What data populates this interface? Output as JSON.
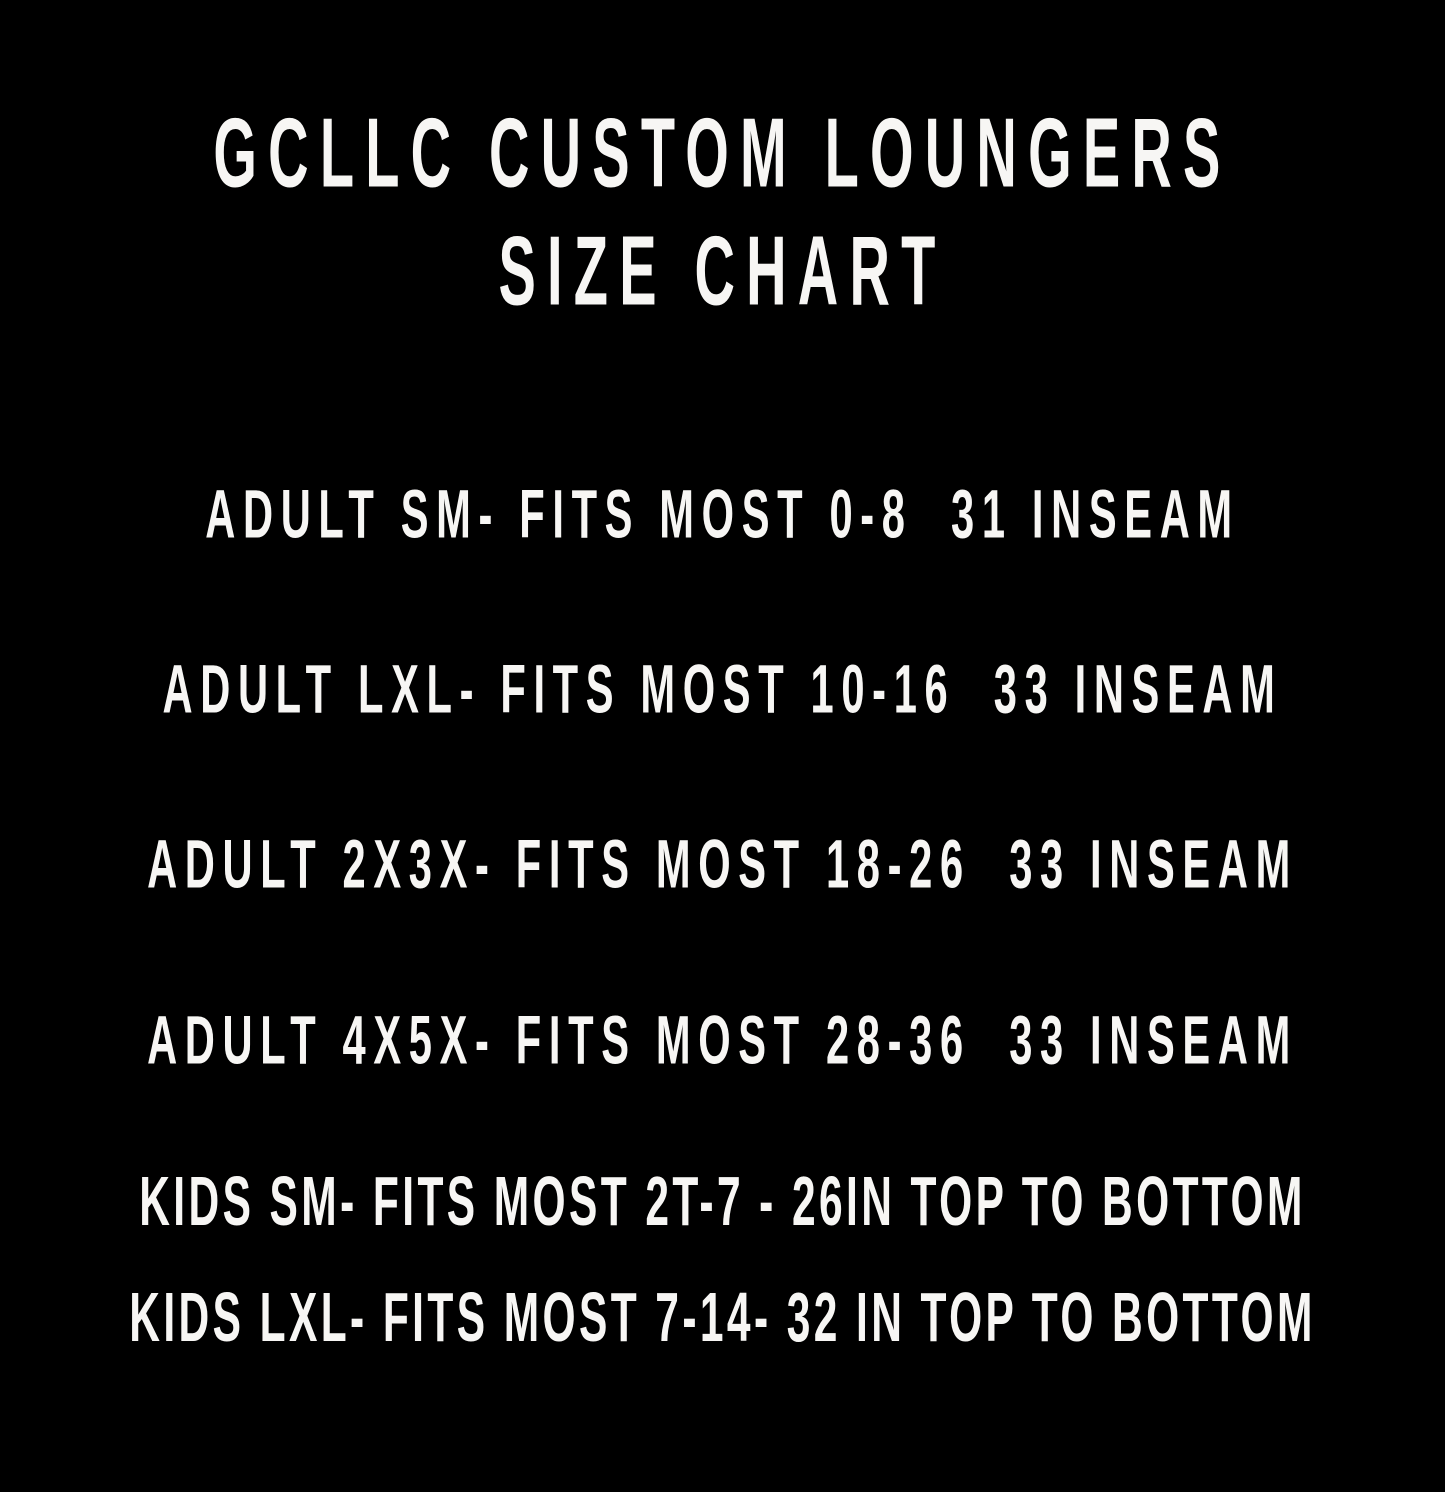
{
  "page": {
    "background_color": "#000000",
    "text_color": "#f7f6f4"
  },
  "title": {
    "line1": "GCLLC CUSTOM LOUNGERS",
    "line2": "SIZE CHART"
  },
  "rows": [
    {
      "size": "ADULT SM",
      "fits": "FITS MOST 0-8",
      "measurement": "31 INSEAM",
      "text": "ADULT SM- FITS MOST 0-8  31 INSEAM"
    },
    {
      "size": "ADULT LXL",
      "fits": "FITS MOST 10-16",
      "measurement": "33 INSEAM",
      "text": "ADULT LXL- FITS MOST 10-16  33 INSEAM"
    },
    {
      "size": "ADULT 2X3X",
      "fits": "FITS MOST 18-26",
      "measurement": "33 INSEAM",
      "text": "ADULT 2X3X- FITS MOST 18-26  33 INSEAM"
    },
    {
      "size": "ADULT 4X5X",
      "fits": "FITS MOST 28-36",
      "measurement": "33 INSEAM",
      "text": "ADULT 4X5X- FITS MOST 28-36  33 INSEAM"
    },
    {
      "size": "KIDS SM",
      "fits": "FITS MOST 2T-7",
      "measurement": "26IN TOP TO BOTTOM",
      "text": "KIDS SM- FITS MOST 2T-7 - 26IN TOP TO BOTTOM"
    },
    {
      "size": "KIDS LXL",
      "fits": "FITS MOST 7-14",
      "measurement": "32 IN TOP TO BOTTOM",
      "text": "KIDS LXL- FITS MOST 7-14- 32 IN TOP TO BOTTOM"
    }
  ],
  "chart_data": {
    "type": "table",
    "title": "GCLLC CUSTOM LOUNGERS SIZE CHART",
    "columns": [
      "size",
      "fits",
      "measurement"
    ],
    "rows": [
      [
        "ADULT SM",
        "FITS MOST 0-8",
        "31 INSEAM"
      ],
      [
        "ADULT LXL",
        "FITS MOST 10-16",
        "33 INSEAM"
      ],
      [
        "ADULT 2X3X",
        "FITS MOST 18-26",
        "33 INSEAM"
      ],
      [
        "ADULT 4X5X",
        "FITS MOST 28-36",
        "33 INSEAM"
      ],
      [
        "KIDS SM",
        "FITS MOST 2T-7",
        "26IN TOP TO BOTTOM"
      ],
      [
        "KIDS LXL",
        "FITS MOST 7-14",
        "32 IN TOP TO BOTTOM"
      ]
    ]
  }
}
